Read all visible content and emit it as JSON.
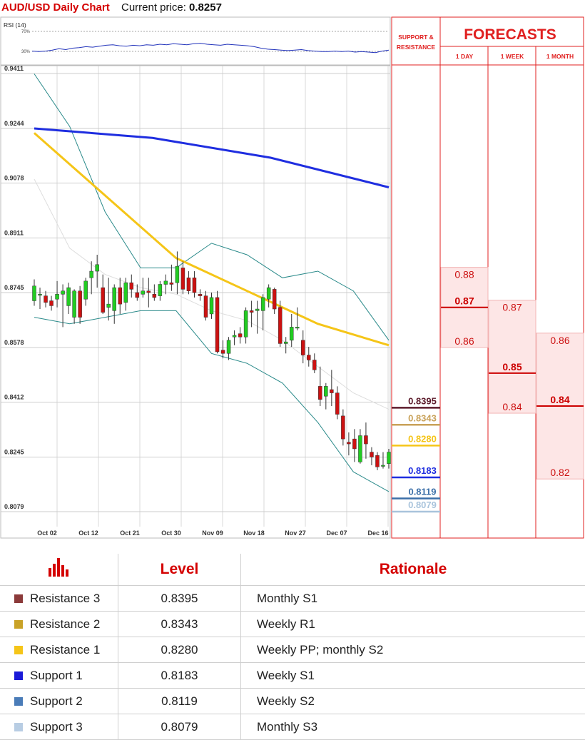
{
  "header": {
    "title": "AUD/USD Daily Chart",
    "price_label": "Current price:",
    "price_value": "0.8257"
  },
  "rsi": {
    "label": "RSI (14)",
    "upper": "70%",
    "lower": "30%",
    "values": [
      31,
      30,
      31,
      33,
      36,
      34,
      37,
      38,
      40,
      39,
      41,
      43,
      44,
      42,
      41,
      43,
      42,
      44,
      43,
      45,
      44,
      46,
      45,
      44,
      46,
      47,
      45,
      44,
      43,
      45,
      44,
      43,
      42,
      40,
      37,
      35,
      34,
      33,
      32,
      33,
      34,
      32,
      31,
      30,
      30,
      31,
      30,
      31,
      29,
      30,
      29,
      28,
      31,
      33
    ]
  },
  "panel_headers": {
    "support_resistance": "SUPPORT & RESISTANCE",
    "forecasts": "FORECASTS",
    "day": "1 DAY",
    "week": "1 WEEK",
    "month": "1 MONTH"
  },
  "chart_data": {
    "type": "candlestick",
    "title": "AUD/USD Daily Chart",
    "y_ticks": [
      "0.9411",
      "0.9244",
      "0.9078",
      "0.8911",
      "0.8745",
      "0.8578",
      "0.8412",
      "0.8245",
      "0.8079"
    ],
    "ylim": [
      0.8056,
      0.9411
    ],
    "x_ticks": [
      "Oct 02",
      "Oct 12",
      "Oct 21",
      "Oct 30",
      "Nov 09",
      "Nov 18",
      "Nov 27",
      "Dec 07",
      "Dec 16"
    ],
    "grid": true,
    "candles": [
      {
        "o": 0.872,
        "h": 0.8785,
        "l": 0.8705,
        "c": 0.8765
      },
      {
        "o": 0.874,
        "h": 0.876,
        "l": 0.8695,
        "c": 0.874
      },
      {
        "o": 0.8735,
        "h": 0.875,
        "l": 0.87,
        "c": 0.8715
      },
      {
        "o": 0.872,
        "h": 0.8735,
        "l": 0.869,
        "c": 0.8705
      },
      {
        "o": 0.8725,
        "h": 0.878,
        "l": 0.87,
        "c": 0.874
      },
      {
        "o": 0.874,
        "h": 0.877,
        "l": 0.864,
        "c": 0.875
      },
      {
        "o": 0.8705,
        "h": 0.8775,
        "l": 0.868,
        "c": 0.876
      },
      {
        "o": 0.867,
        "h": 0.8755,
        "l": 0.865,
        "c": 0.875
      },
      {
        "o": 0.875,
        "h": 0.8765,
        "l": 0.865,
        "c": 0.867
      },
      {
        "o": 0.8725,
        "h": 0.879,
        "l": 0.8705,
        "c": 0.878
      },
      {
        "o": 0.879,
        "h": 0.884,
        "l": 0.874,
        "c": 0.881
      },
      {
        "o": 0.881,
        "h": 0.886,
        "l": 0.876,
        "c": 0.883
      },
      {
        "o": 0.876,
        "h": 0.88,
        "l": 0.868,
        "c": 0.8685
      },
      {
        "o": 0.87,
        "h": 0.879,
        "l": 0.866,
        "c": 0.871
      },
      {
        "o": 0.869,
        "h": 0.877,
        "l": 0.865,
        "c": 0.876
      },
      {
        "o": 0.876,
        "h": 0.879,
        "l": 0.868,
        "c": 0.871
      },
      {
        "o": 0.8715,
        "h": 0.879,
        "l": 0.869,
        "c": 0.8775
      },
      {
        "o": 0.8775,
        "h": 0.88,
        "l": 0.873,
        "c": 0.8755
      },
      {
        "o": 0.8745,
        "h": 0.877,
        "l": 0.872,
        "c": 0.873
      },
      {
        "o": 0.874,
        "h": 0.879,
        "l": 0.873,
        "c": 0.875
      },
      {
        "o": 0.875,
        "h": 0.879,
        "l": 0.87,
        "c": 0.8745
      },
      {
        "o": 0.874,
        "h": 0.877,
        "l": 0.872,
        "c": 0.873
      },
      {
        "o": 0.8735,
        "h": 0.878,
        "l": 0.872,
        "c": 0.877
      },
      {
        "o": 0.877,
        "h": 0.88,
        "l": 0.874,
        "c": 0.878
      },
      {
        "o": 0.8775,
        "h": 0.883,
        "l": 0.875,
        "c": 0.877
      },
      {
        "o": 0.8775,
        "h": 0.887,
        "l": 0.874,
        "c": 0.8825
      },
      {
        "o": 0.882,
        "h": 0.884,
        "l": 0.874,
        "c": 0.8755
      },
      {
        "o": 0.879,
        "h": 0.881,
        "l": 0.874,
        "c": 0.875
      },
      {
        "o": 0.879,
        "h": 0.881,
        "l": 0.873,
        "c": 0.8745
      },
      {
        "o": 0.874,
        "h": 0.8755,
        "l": 0.872,
        "c": 0.8735
      },
      {
        "o": 0.8735,
        "h": 0.875,
        "l": 0.866,
        "c": 0.867
      },
      {
        "o": 0.868,
        "h": 0.8745,
        "l": 0.8665,
        "c": 0.873
      },
      {
        "o": 0.873,
        "h": 0.875,
        "l": 0.856,
        "c": 0.8565
      },
      {
        "o": 0.857,
        "h": 0.86,
        "l": 0.8545,
        "c": 0.856
      },
      {
        "o": 0.856,
        "h": 0.861,
        "l": 0.854,
        "c": 0.86
      },
      {
        "o": 0.861,
        "h": 0.863,
        "l": 0.8585,
        "c": 0.8615
      },
      {
        "o": 0.862,
        "h": 0.864,
        "l": 0.859,
        "c": 0.861
      },
      {
        "o": 0.861,
        "h": 0.87,
        "l": 0.859,
        "c": 0.869
      },
      {
        "o": 0.869,
        "h": 0.872,
        "l": 0.864,
        "c": 0.8685
      },
      {
        "o": 0.869,
        "h": 0.872,
        "l": 0.862,
        "c": 0.8695
      },
      {
        "o": 0.869,
        "h": 0.874,
        "l": 0.863,
        "c": 0.873
      },
      {
        "o": 0.8725,
        "h": 0.877,
        "l": 0.87,
        "c": 0.876
      },
      {
        "o": 0.8755,
        "h": 0.876,
        "l": 0.868,
        "c": 0.8695
      },
      {
        "o": 0.87,
        "h": 0.872,
        "l": 0.858,
        "c": 0.859
      },
      {
        "o": 0.859,
        "h": 0.861,
        "l": 0.856,
        "c": 0.8595
      },
      {
        "o": 0.86,
        "h": 0.868,
        "l": 0.858,
        "c": 0.864
      },
      {
        "o": 0.864,
        "h": 0.87,
        "l": 0.863,
        "c": 0.864
      },
      {
        "o": 0.86,
        "h": 0.863,
        "l": 0.853,
        "c": 0.8555
      },
      {
        "o": 0.8555,
        "h": 0.858,
        "l": 0.852,
        "c": 0.854
      },
      {
        "o": 0.854,
        "h": 0.856,
        "l": 0.85,
        "c": 0.851
      },
      {
        "o": 0.846,
        "h": 0.852,
        "l": 0.84,
        "c": 0.842
      },
      {
        "o": 0.843,
        "h": 0.847,
        "l": 0.839,
        "c": 0.846
      },
      {
        "o": 0.845,
        "h": 0.851,
        "l": 0.84,
        "c": 0.844
      },
      {
        "o": 0.844,
        "h": 0.846,
        "l": 0.836,
        "c": 0.8375
      },
      {
        "o": 0.837,
        "h": 0.839,
        "l": 0.828,
        "c": 0.83
      },
      {
        "o": 0.829,
        "h": 0.832,
        "l": 0.825,
        "c": 0.8285
      },
      {
        "o": 0.83,
        "h": 0.833,
        "l": 0.823,
        "c": 0.827
      },
      {
        "o": 0.823,
        "h": 0.833,
        "l": 0.8225,
        "c": 0.831
      },
      {
        "o": 0.831,
        "h": 0.835,
        "l": 0.824,
        "c": 0.8285
      },
      {
        "o": 0.826,
        "h": 0.8275,
        "l": 0.822,
        "c": 0.8245
      },
      {
        "o": 0.825,
        "h": 0.826,
        "l": 0.8205,
        "c": 0.8215
      },
      {
        "o": 0.822,
        "h": 0.826,
        "l": 0.821,
        "c": 0.822
      },
      {
        "o": 0.8225,
        "h": 0.827,
        "l": 0.821,
        "c": 0.826
      }
    ],
    "ma200": {
      "color": "#1f2ee0",
      "values": [
        0.9244,
        0.9215,
        0.9155,
        0.9065
      ]
    },
    "ma100": {
      "color": "#f5c518",
      "values": [
        0.923,
        0.904,
        0.885,
        0.875,
        0.865,
        0.8585
      ]
    },
    "bollinger_upper": [
      0.941,
      0.925,
      0.899,
      0.882,
      0.882,
      0.8895,
      0.886,
      0.879,
      0.881,
      0.875,
      0.86
    ],
    "bollinger_lower": [
      0.867,
      0.865,
      0.867,
      0.869,
      0.869,
      0.856,
      0.853,
      0.847,
      0.835,
      0.82,
      0.814
    ],
    "bollinger_mid": [
      0.909,
      0.888,
      0.88,
      0.876,
      0.874,
      0.869,
      0.866,
      0.86,
      0.852,
      0.844,
      0.839
    ]
  },
  "levels": [
    {
      "value": "0.8395",
      "color": "#5b1a2a"
    },
    {
      "value": "0.8343",
      "color": "#c9a25a"
    },
    {
      "value": "0.8280",
      "color": "#f5c518"
    },
    {
      "value": "0.8183",
      "color": "#1f2ee0"
    },
    {
      "value": "0.8119",
      "color": "#3b6fa8"
    },
    {
      "value": "0.8079",
      "color": "#a9c4dc"
    }
  ],
  "forecasts": {
    "day": [
      {
        "value": "0.88",
        "bold": false
      },
      {
        "value": "0.87",
        "bold": true
      },
      {
        "value": "0.86",
        "bold": false
      }
    ],
    "week": [
      {
        "value": "0.87",
        "bold": false
      },
      {
        "value": "0.85",
        "bold": true
      },
      {
        "value": "0.84",
        "bold": false
      }
    ],
    "month": [
      {
        "value": "0.86",
        "bold": false
      },
      {
        "value": "0.84",
        "bold": true
      },
      {
        "value": "0.82",
        "bold": false
      }
    ]
  },
  "table": {
    "headers": {
      "level": "Level",
      "rationale": "Rationale"
    },
    "rows": [
      {
        "name": "Resistance 3",
        "level": "0.8395",
        "rationale": "Monthly S1",
        "color": "#8b3a3a"
      },
      {
        "name": "Resistance 2",
        "level": "0.8343",
        "rationale": "Weekly R1",
        "color": "#c9a227"
      },
      {
        "name": "Resistance 1",
        "level": "0.8280",
        "rationale": "Weekly PP; monthly S2",
        "color": "#f5c518"
      },
      {
        "name": "Support 1",
        "level": "0.8183",
        "rationale": "Weekly S1",
        "color": "#1a1ad8"
      },
      {
        "name": "Support 2",
        "level": "0.8119",
        "rationale": "Weekly S2",
        "color": "#4a7cb8"
      },
      {
        "name": "Support 3",
        "level": "0.8079",
        "rationale": "Monthly S3",
        "color": "#b8cde3"
      }
    ]
  }
}
